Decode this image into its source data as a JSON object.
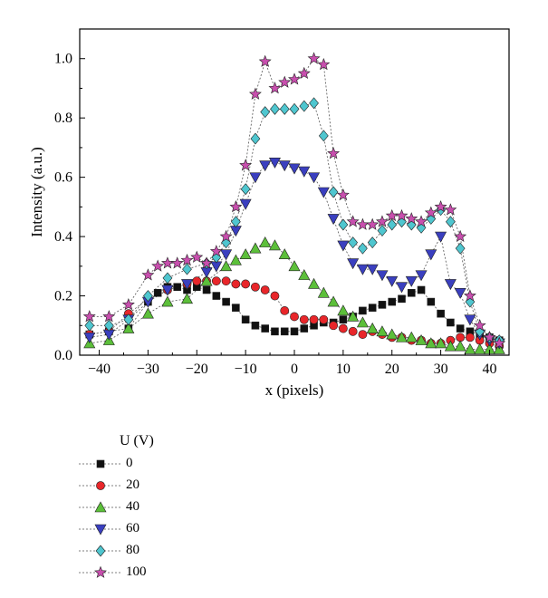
{
  "chart_data": {
    "type": "line",
    "xlabel": "x (pixels)",
    "ylabel": "Intensity (a.u.)",
    "xlim": [
      -44,
      44
    ],
    "ylim": [
      0,
      1.1
    ],
    "xticks": [
      -40,
      -30,
      -20,
      -10,
      0,
      10,
      20,
      30,
      40
    ],
    "yticks": [
      0.0,
      0.2,
      0.4,
      0.6,
      0.8,
      1.0
    ],
    "xtick_labels": [
      "−40",
      "−30",
      "−20",
      "−10",
      "0",
      "10",
      "20",
      "30",
      "40"
    ],
    "ytick_labels": [
      "0.0",
      "0.2",
      "0.4",
      "0.6",
      "0.8",
      "1.0"
    ],
    "grid": false,
    "legend_placement": "below",
    "legend_title": "U (V)",
    "series": [
      {
        "name": "0",
        "marker": "square",
        "color": "#111111",
        "x": [
          -42,
          -38,
          -34,
          -30,
          -28,
          -26,
          -24,
          -22,
          -20,
          -18,
          -16,
          -14,
          -12,
          -10,
          -8,
          -6,
          -4,
          -2,
          0,
          2,
          4,
          6,
          8,
          10,
          12,
          14,
          16,
          18,
          20,
          22,
          24,
          26,
          28,
          30,
          32,
          34,
          36,
          38,
          40,
          42
        ],
        "y": [
          0.07,
          0.08,
          0.09,
          0.18,
          0.21,
          0.23,
          0.23,
          0.22,
          0.23,
          0.22,
          0.2,
          0.18,
          0.16,
          0.12,
          0.1,
          0.09,
          0.08,
          0.08,
          0.08,
          0.09,
          0.1,
          0.11,
          0.11,
          0.12,
          0.13,
          0.15,
          0.16,
          0.17,
          0.18,
          0.19,
          0.21,
          0.22,
          0.18,
          0.14,
          0.11,
          0.09,
          0.08,
          0.07,
          0.06,
          0.05
        ]
      },
      {
        "name": "20",
        "marker": "circle",
        "color": "#e8262a",
        "x": [
          -42,
          -38,
          -34,
          -30,
          -26,
          -22,
          -20,
          -18,
          -16,
          -14,
          -12,
          -10,
          -8,
          -6,
          -4,
          -2,
          0,
          2,
          4,
          6,
          8,
          10,
          12,
          14,
          16,
          18,
          20,
          22,
          24,
          26,
          28,
          30,
          32,
          34,
          36,
          38,
          40,
          42
        ],
        "y": [
          0.07,
          0.08,
          0.14,
          0.19,
          0.22,
          0.24,
          0.25,
          0.25,
          0.25,
          0.25,
          0.24,
          0.24,
          0.23,
          0.22,
          0.2,
          0.15,
          0.13,
          0.12,
          0.12,
          0.12,
          0.1,
          0.09,
          0.08,
          0.07,
          0.08,
          0.07,
          0.06,
          0.06,
          0.05,
          0.05,
          0.04,
          0.04,
          0.05,
          0.06,
          0.06,
          0.05,
          0.04,
          0.03
        ]
      },
      {
        "name": "40",
        "marker": "triangle-up",
        "color": "#5cbf3a",
        "x": [
          -42,
          -38,
          -34,
          -30,
          -26,
          -22,
          -18,
          -14,
          -12,
          -10,
          -8,
          -6,
          -4,
          -2,
          0,
          2,
          4,
          6,
          8,
          10,
          12,
          14,
          16,
          18,
          20,
          22,
          24,
          26,
          28,
          30,
          32,
          34,
          36,
          38,
          40,
          42
        ],
        "y": [
          0.04,
          0.05,
          0.09,
          0.14,
          0.18,
          0.19,
          0.25,
          0.3,
          0.32,
          0.34,
          0.36,
          0.38,
          0.37,
          0.34,
          0.3,
          0.27,
          0.24,
          0.21,
          0.18,
          0.15,
          0.13,
          0.11,
          0.09,
          0.08,
          0.07,
          0.06,
          0.06,
          0.05,
          0.04,
          0.04,
          0.03,
          0.03,
          0.02,
          0.02,
          0.02,
          0.02
        ]
      },
      {
        "name": "60",
        "marker": "triangle-down",
        "color": "#3a3fbf",
        "x": [
          -42,
          -38,
          -34,
          -30,
          -26,
          -22,
          -18,
          -16,
          -14,
          -12,
          -10,
          -8,
          -6,
          -4,
          -2,
          0,
          2,
          4,
          6,
          8,
          10,
          12,
          14,
          16,
          18,
          20,
          22,
          24,
          26,
          28,
          30,
          32,
          34,
          36,
          38,
          40,
          42
        ],
        "y": [
          0.06,
          0.07,
          0.12,
          0.18,
          0.22,
          0.24,
          0.28,
          0.3,
          0.34,
          0.42,
          0.51,
          0.6,
          0.64,
          0.65,
          0.64,
          0.63,
          0.62,
          0.6,
          0.55,
          0.46,
          0.37,
          0.31,
          0.29,
          0.29,
          0.27,
          0.25,
          0.23,
          0.25,
          0.27,
          0.34,
          0.4,
          0.24,
          0.21,
          0.12,
          0.07,
          0.05,
          0.04
        ]
      },
      {
        "name": "80",
        "marker": "diamond",
        "color": "#4fc6cf",
        "x": [
          -42,
          -38,
          -34,
          -30,
          -26,
          -22,
          -18,
          -16,
          -14,
          -12,
          -10,
          -8,
          -6,
          -4,
          -2,
          0,
          2,
          4,
          6,
          8,
          10,
          12,
          14,
          16,
          18,
          20,
          22,
          24,
          26,
          28,
          30,
          32,
          34,
          36,
          38,
          40,
          42
        ],
        "y": [
          0.1,
          0.1,
          0.12,
          0.2,
          0.26,
          0.29,
          0.31,
          0.33,
          0.38,
          0.45,
          0.56,
          0.73,
          0.82,
          0.83,
          0.83,
          0.83,
          0.84,
          0.85,
          0.74,
          0.55,
          0.44,
          0.38,
          0.36,
          0.38,
          0.42,
          0.44,
          0.45,
          0.44,
          0.43,
          0.46,
          0.49,
          0.45,
          0.36,
          0.18,
          0.08,
          0.06,
          0.05
        ]
      },
      {
        "name": "100",
        "marker": "star",
        "color": "#c84fae",
        "x": [
          -42,
          -38,
          -34,
          -30,
          -28,
          -26,
          -24,
          -22,
          -20,
          -18,
          -16,
          -14,
          -12,
          -10,
          -8,
          -6,
          -4,
          -2,
          0,
          2,
          4,
          6,
          8,
          10,
          12,
          14,
          16,
          18,
          20,
          22,
          24,
          26,
          28,
          30,
          32,
          34,
          36,
          38,
          40,
          42
        ],
        "y": [
          0.13,
          0.13,
          0.17,
          0.27,
          0.3,
          0.31,
          0.31,
          0.32,
          0.33,
          0.31,
          0.35,
          0.4,
          0.5,
          0.64,
          0.88,
          0.99,
          0.9,
          0.92,
          0.93,
          0.95,
          1.0,
          0.98,
          0.68,
          0.54,
          0.45,
          0.44,
          0.44,
          0.45,
          0.47,
          0.47,
          0.46,
          0.45,
          0.48,
          0.5,
          0.49,
          0.4,
          0.2,
          0.1,
          0.06,
          0.04
        ]
      }
    ]
  }
}
